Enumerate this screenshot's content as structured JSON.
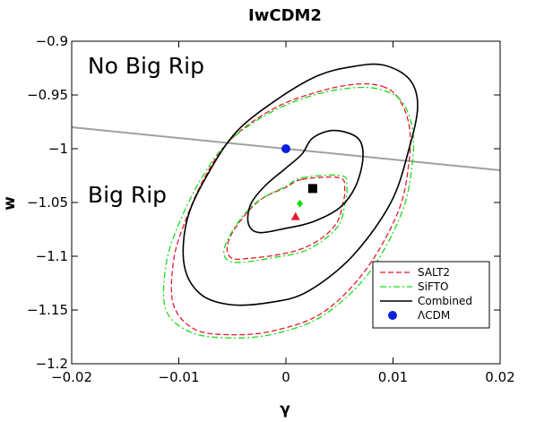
{
  "chart_data": {
    "type": "contour",
    "title": "IwCDM2",
    "xlabel": "γ",
    "ylabel": "w",
    "xlim": [
      -0.02,
      0.02
    ],
    "ylim": [
      -1.2,
      -0.9
    ],
    "x_ticks": [
      {
        "value": -0.02,
        "label": "−0.02"
      },
      {
        "value": -0.01,
        "label": "−0.01"
      },
      {
        "value": 0,
        "label": "0"
      },
      {
        "value": 0.01,
        "label": "0.01"
      },
      {
        "value": 0.02,
        "label": "0.02"
      }
    ],
    "y_ticks": [
      {
        "value": -0.9,
        "label": "−0.9"
      },
      {
        "value": -0.95,
        "label": "−0.95"
      },
      {
        "value": -1.0,
        "label": "−1"
      },
      {
        "value": -1.05,
        "label": "−1.05"
      },
      {
        "value": -1.1,
        "label": "−1.1"
      },
      {
        "value": -1.15,
        "label": "−1.15"
      },
      {
        "value": -1.2,
        "label": "−1.2"
      }
    ],
    "grid": false,
    "annotations": [
      {
        "text": "No Big Rip",
        "x": -0.0185,
        "y": -0.93
      },
      {
        "text": "Big Rip",
        "x": -0.0185,
        "y": -1.05
      }
    ],
    "divider_line": {
      "name": "",
      "color": "#a0a0a0",
      "points": [
        [
          -0.02,
          -0.98
        ],
        [
          0.02,
          -1.02
        ]
      ]
    },
    "legend_position": "lower-right",
    "series": [
      {
        "name": "SALT2",
        "color": "#e8192c",
        "dash": "dashed",
        "marker": "triangle",
        "best_fit": [
          0.0009,
          -1.063
        ],
        "contours": [
          [
            [
              0.0015,
              -1.0285
            ],
            [
              0.005,
              -1.027
            ],
            [
              0.0055,
              -1.038
            ],
            [
              0.0053,
              -1.052
            ],
            [
              0.0048,
              -1.068
            ],
            [
              0.0035,
              -1.082
            ],
            [
              0.0015,
              -1.093
            ],
            [
              -0.001,
              -1.099
            ],
            [
              -0.0035,
              -1.102
            ],
            [
              -0.005,
              -1.102
            ],
            [
              -0.0055,
              -1.093
            ],
            [
              -0.005,
              -1.078
            ],
            [
              -0.0035,
              -1.058
            ],
            [
              -0.002,
              -1.045
            ],
            [
              0.0,
              -1.036
            ]
          ],
          [
            [
              0.009,
              -0.942
            ],
            [
              0.0105,
              -0.953
            ],
            [
              0.0115,
              -0.978
            ],
            [
              0.0115,
              -1.012
            ],
            [
              0.0105,
              -1.058
            ],
            [
              0.0075,
              -1.112
            ],
            [
              0.0035,
              -1.152
            ],
            [
              -0.001,
              -1.169
            ],
            [
              -0.005,
              -1.173
            ],
            [
              -0.0085,
              -1.168
            ],
            [
              -0.0105,
              -1.145
            ],
            [
              -0.0105,
              -1.105
            ],
            [
              -0.0095,
              -1.07
            ],
            [
              -0.0075,
              -1.025
            ],
            [
              -0.005,
              -0.99
            ],
            [
              -0.001,
              -0.962
            ],
            [
              0.003,
              -0.947
            ],
            [
              0.0065,
              -0.94
            ]
          ]
        ]
      },
      {
        "name": "SiFTO",
        "color": "#19dd19",
        "dash": "dashdot",
        "marker": "diamond",
        "best_fit": [
          0.0013,
          -1.051
        ],
        "contours": [
          [
            [
              0.0015,
              -1.027
            ],
            [
              0.0052,
              -1.025
            ],
            [
              0.0057,
              -1.036
            ],
            [
              0.0055,
              -1.052
            ],
            [
              0.005,
              -1.07
            ],
            [
              0.0035,
              -1.085
            ],
            [
              0.0015,
              -1.096
            ],
            [
              -0.001,
              -1.101
            ],
            [
              -0.0035,
              -1.105
            ],
            [
              -0.0052,
              -1.105
            ],
            [
              -0.0058,
              -1.096
            ],
            [
              -0.0052,
              -1.08
            ],
            [
              -0.0038,
              -1.06
            ],
            [
              -0.0022,
              -1.046
            ],
            [
              0.0,
              -1.035
            ]
          ],
          [
            [
              0.0092,
              -0.946
            ],
            [
              0.0108,
              -0.956
            ],
            [
              0.0118,
              -0.98
            ],
            [
              0.0118,
              -1.014
            ],
            [
              0.0108,
              -1.06
            ],
            [
              0.0078,
              -1.115
            ],
            [
              0.0035,
              -1.155
            ],
            [
              -0.001,
              -1.172
            ],
            [
              -0.005,
              -1.176
            ],
            [
              -0.0088,
              -1.171
            ],
            [
              -0.0112,
              -1.15
            ],
            [
              -0.0112,
              -1.108
            ],
            [
              -0.01,
              -1.07
            ],
            [
              -0.0078,
              -1.026
            ],
            [
              -0.0052,
              -0.992
            ],
            [
              -0.0012,
              -0.965
            ],
            [
              0.003,
              -0.949
            ],
            [
              0.0068,
              -0.943
            ]
          ]
        ]
      },
      {
        "name": "Combined",
        "color": "#000000",
        "dash": "solid",
        "marker": "square",
        "best_fit": [
          0.0025,
          -1.037
        ],
        "contours": [
          [
            [
              0.0045,
              -0.983
            ],
            [
              0.0067,
              -0.99
            ],
            [
              0.0072,
              -1.008
            ],
            [
              0.0065,
              -1.035
            ],
            [
              0.005,
              -1.055
            ],
            [
              0.0025,
              -1.068
            ],
            [
              0.0,
              -1.074
            ],
            [
              -0.0025,
              -1.078
            ],
            [
              -0.0035,
              -1.07
            ],
            [
              -0.0033,
              -1.052
            ],
            [
              -0.002,
              -1.035
            ],
            [
              0.0,
              -1.018
            ],
            [
              0.0015,
              -1.005
            ],
            [
              0.0025,
              -0.99
            ]
          ],
          [
            [
              0.009,
              -0.922
            ],
            [
              0.0115,
              -0.935
            ],
            [
              0.0123,
              -0.96
            ],
            [
              0.0115,
              -1.0
            ],
            [
              0.0098,
              -1.05
            ],
            [
              0.0062,
              -1.1
            ],
            [
              0.002,
              -1.133
            ],
            [
              -0.0015,
              -1.143
            ],
            [
              -0.0052,
              -1.145
            ],
            [
              -0.008,
              -1.135
            ],
            [
              -0.0095,
              -1.108
            ],
            [
              -0.0092,
              -1.065
            ],
            [
              -0.0072,
              -1.022
            ],
            [
              -0.0045,
              -0.983
            ],
            [
              -0.0005,
              -0.952
            ],
            [
              0.003,
              -0.932
            ],
            [
              0.006,
              -0.924
            ]
          ]
        ]
      },
      {
        "name": "ΛCDM",
        "color": "#0a1fe0",
        "dash": "none",
        "marker": "circle",
        "best_fit": [
          0.0,
          -1.0
        ],
        "contours": []
      }
    ]
  }
}
